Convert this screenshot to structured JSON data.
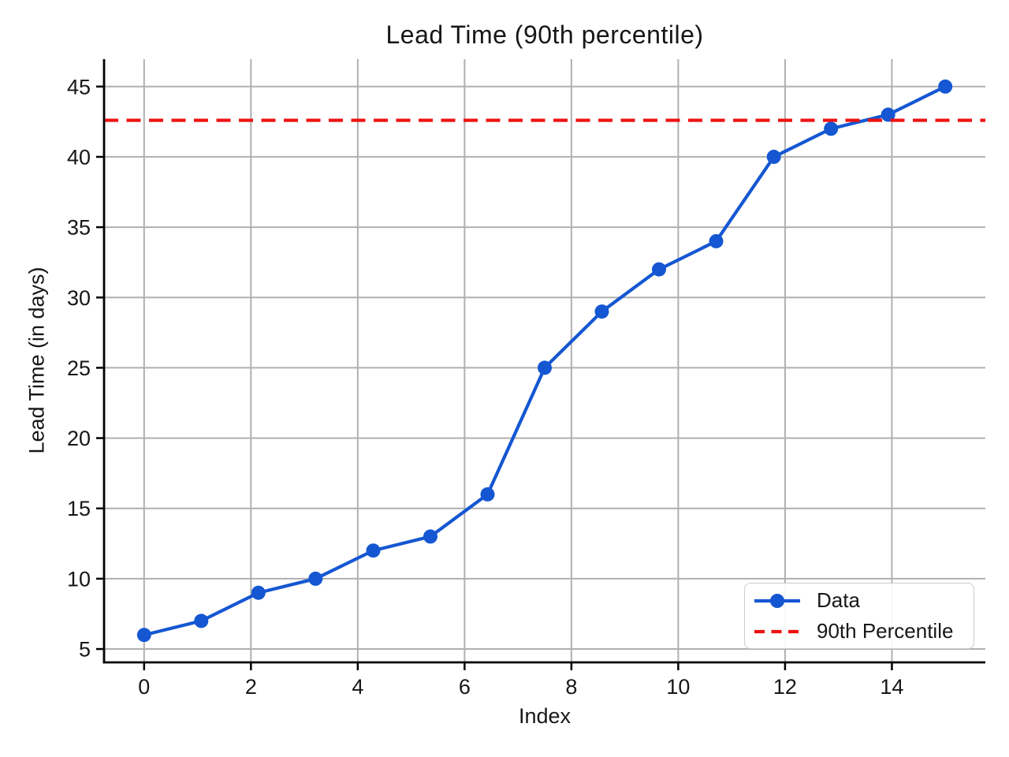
{
  "figure": {
    "background": "#ffffff"
  },
  "colors": {
    "data_series": "#1557d2",
    "percentile_line": "#ee1111",
    "grid": "#b0b0b0",
    "axis": "#000000",
    "text": "#171717",
    "legend_border": "#cccccc"
  },
  "chart_data": {
    "type": "line",
    "title": "Lead Time (90th percentile)",
    "xlabel": "Index",
    "ylabel": "Lead Time (in days)",
    "x": [
      0,
      1.07,
      2.14,
      3.21,
      4.29,
      5.36,
      6.43,
      7.5,
      8.57,
      9.64,
      10.71,
      11.79,
      12.86,
      13.93,
      15
    ],
    "series": [
      {
        "name": "Data",
        "values": [
          6,
          7,
          9,
          10,
          12,
          13,
          16,
          25,
          29,
          32,
          34,
          40,
          42,
          43,
          45
        ],
        "marker": "circle"
      }
    ],
    "reference_line": {
      "name": "90th Percentile",
      "value": 42.6,
      "style": "dashed"
    },
    "x_ticks": [
      0,
      2,
      4,
      6,
      8,
      10,
      12,
      14
    ],
    "y_ticks": [
      5,
      10,
      15,
      20,
      25,
      30,
      35,
      40,
      45
    ],
    "xlim": [
      -0.75,
      15.75
    ],
    "ylim": [
      4.05,
      46.95
    ],
    "grid": true,
    "legend_position": "lower right",
    "legend": [
      "Data",
      "90th Percentile"
    ]
  }
}
